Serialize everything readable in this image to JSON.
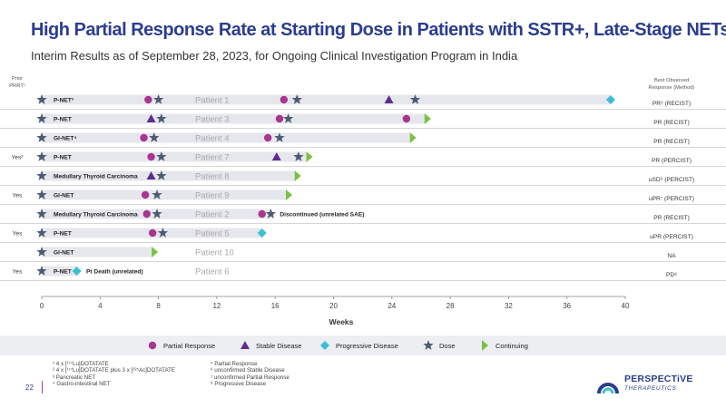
{
  "header": {
    "title": "High Partial Response Rate at Starting Dose in Patients with SSTR+, Late-Stage NETs",
    "subtitle": "Interim Results as of September 28, 2023, for Ongoing Clinical Investigation Program in India"
  },
  "column_headers": {
    "prior_prrt": "Prior PRRT¹",
    "best_response": "Best Observed Response (Method)"
  },
  "colors": {
    "partial_response": "#a8358f",
    "stable_disease": "#5b2d91",
    "progressive_disease": "#3bbfd6",
    "dose": "#4d5a73",
    "continuing": "#7ac143",
    "bar": "#e6e7ec",
    "title": "#2b3d8f"
  },
  "chart_data": {
    "type": "swimmer",
    "xlabel": "Weeks",
    "xlim": [
      0,
      40
    ],
    "xticks": [
      0,
      4,
      8,
      12,
      16,
      20,
      24,
      28,
      32,
      36,
      40
    ],
    "legend": [
      {
        "key": "partial_response",
        "label": "Partial Response",
        "shape": "circle"
      },
      {
        "key": "stable_disease",
        "label": "Stable Disease",
        "shape": "triangle"
      },
      {
        "key": "progressive_disease",
        "label": "Progressive Disease",
        "shape": "diamond"
      },
      {
        "key": "dose",
        "label": "Dose",
        "shape": "star"
      },
      {
        "key": "continuing",
        "label": "Continuing",
        "shape": "arrow"
      }
    ],
    "patients": [
      {
        "patient": "Patient 1",
        "tumor": "P-NET³",
        "prior_prrt": "",
        "duration": 39,
        "continuing": false,
        "doses": [
          0,
          8,
          17.5,
          25.6
        ],
        "pr": [
          7.3,
          16.6
        ],
        "sd": [
          23.8
        ],
        "pd": [
          39
        ],
        "note": "",
        "best_response": "PR⁵ (RECIST)"
      },
      {
        "patient": "Patient 3",
        "tumor": "P-NET",
        "prior_prrt": "",
        "duration": 26.3,
        "continuing": true,
        "doses": [
          0,
          8.2,
          16.9
        ],
        "pr": [
          16.3,
          25
        ],
        "sd": [
          7.5
        ],
        "pd": [],
        "note": "",
        "best_response": "PR (RECIST)"
      },
      {
        "patient": "Patient 4",
        "tumor": "GI-NET⁴",
        "prior_prrt": "",
        "duration": 25.3,
        "continuing": true,
        "doses": [
          0,
          7.7,
          16.3
        ],
        "pr": [
          7,
          15.5
        ],
        "sd": [],
        "pd": [],
        "note": "",
        "best_response": "PR (RECIST)"
      },
      {
        "patient": "Patient 7",
        "tumor": "P-NET",
        "prior_prrt": "Yes²",
        "duration": 18.2,
        "continuing": true,
        "doses": [
          0,
          8.2,
          17.6
        ],
        "pr": [
          7.5
        ],
        "sd": [
          16.1
        ],
        "pd": [],
        "note": "",
        "best_response": "PR (PERCIST)"
      },
      {
        "patient": "Patient 8",
        "tumor": "Medullary Thyroid Carcinoma",
        "prior_prrt": "",
        "duration": 17.4,
        "continuing": true,
        "doses": [
          0,
          8.2
        ],
        "pr": [],
        "sd": [
          7.5
        ],
        "pd": [],
        "note": "",
        "best_response": "uSD⁶ (PERCIST)"
      },
      {
        "patient": "Patient 9",
        "tumor": "GI-NET",
        "prior_prrt": "Yes",
        "duration": 16.8,
        "continuing": true,
        "doses": [
          0,
          7.9
        ],
        "pr": [
          7.1
        ],
        "sd": [],
        "pd": [],
        "note": "",
        "best_response": "uPR⁷ (PERCIST)"
      },
      {
        "patient": "Patient 2",
        "tumor": "Medullary Thyroid Carcinoma",
        "prior_prrt": "",
        "duration": 15.7,
        "continuing": false,
        "doses": [
          0,
          7.9,
          15.7
        ],
        "pr": [
          7.2,
          15.1
        ],
        "sd": [],
        "pd": [],
        "note": "Discontinued (unrelated SAE)",
        "best_response": "PR (RECIST)"
      },
      {
        "patient": "Patient 5",
        "tumor": "P-NET",
        "prior_prrt": "Yes",
        "duration": 15.1,
        "continuing": false,
        "doses": [
          0,
          8.3
        ],
        "pr": [
          7.6
        ],
        "sd": [],
        "pd": [
          15.1
        ],
        "note": "",
        "best_response": "uPR (PERCIST)"
      },
      {
        "patient": "Patient 10",
        "tumor": "GI-NET",
        "prior_prrt": "",
        "duration": 7.6,
        "continuing": true,
        "doses": [
          0
        ],
        "pr": [],
        "sd": [],
        "pd": [],
        "note": "",
        "best_response": "NA"
      },
      {
        "patient": "Patient 6",
        "tumor": "P-NET",
        "prior_prrt": "Yes",
        "duration": 2.4,
        "continuing": false,
        "doses": [
          0
        ],
        "pr": [],
        "sd": [],
        "pd": [
          2.4
        ],
        "note": "Pt Death (unrelated)",
        "best_response": "PD⁸"
      }
    ]
  },
  "footnotes_left": [
    "¹ 4 x [¹⁷⁷Lu]DOTATATE",
    "² 4 x [¹⁷⁷Lu]DOTATATE plus 3 x [²²⁵Ac]DOTATATE",
    "³ Pancreatic NET",
    "⁴ Gastro-intestinal NET"
  ],
  "footnotes_right": [
    "⁵ Partial Response",
    "⁶ unconfirmed Stable Disease",
    "⁷ unconfirmed Partial Response",
    "⁸ Progressive Disease"
  ],
  "footer": {
    "page_number": "22",
    "logo_name": "PERSPECTiVE",
    "logo_sub": "THERAPEUTICS"
  }
}
